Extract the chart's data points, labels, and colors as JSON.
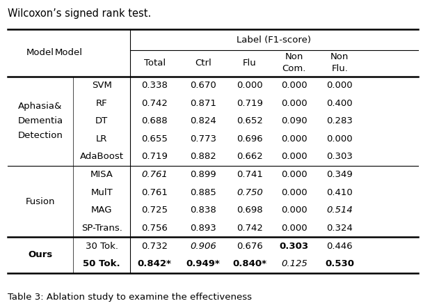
{
  "title": "Wilcoxon’s signed rank test.",
  "caption": "Table 3: Ablation study to examine the effectiveness",
  "header_top": "Label (F1-score)",
  "col_headers_line1": [
    "Total",
    "Ctrl",
    "Flu",
    "Non",
    "Non"
  ],
  "col_headers_line2": [
    "",
    "",
    "",
    "Com.",
    "Flu."
  ],
  "model_col_header": "Model",
  "groups": [
    {
      "group_label": [
        "Aphasia&",
        "Dementia",
        "Detection"
      ],
      "rows": [
        {
          "model": "SVM",
          "values": [
            "0.338",
            "0.670",
            "0.000",
            "0.000",
            "0.000"
          ],
          "styles": [
            "n",
            "n",
            "n",
            "n",
            "n"
          ]
        },
        {
          "model": "RF",
          "values": [
            "0.742",
            "0.871",
            "0.719",
            "0.000",
            "0.400"
          ],
          "styles": [
            "n",
            "n",
            "n",
            "n",
            "n"
          ]
        },
        {
          "model": "DT",
          "values": [
            "0.688",
            "0.824",
            "0.652",
            "0.090",
            "0.283"
          ],
          "styles": [
            "n",
            "n",
            "n",
            "n",
            "n"
          ]
        },
        {
          "model": "LR",
          "values": [
            "0.655",
            "0.773",
            "0.696",
            "0.000",
            "0.000"
          ],
          "styles": [
            "n",
            "n",
            "n",
            "n",
            "n"
          ]
        },
        {
          "model": "AdaBoost",
          "values": [
            "0.719",
            "0.882",
            "0.662",
            "0.000",
            "0.303"
          ],
          "styles": [
            "n",
            "n",
            "n",
            "n",
            "n"
          ]
        }
      ]
    },
    {
      "group_label": [
        "Fusion"
      ],
      "rows": [
        {
          "model": "MISA",
          "values": [
            "0.761",
            "0.899",
            "0.741",
            "0.000",
            "0.349"
          ],
          "styles": [
            "i",
            "n",
            "n",
            "n",
            "n"
          ]
        },
        {
          "model": "MulT",
          "values": [
            "0.761",
            "0.885",
            "0.750",
            "0.000",
            "0.410"
          ],
          "styles": [
            "n",
            "n",
            "i",
            "n",
            "n"
          ]
        },
        {
          "model": "MAG",
          "values": [
            "0.725",
            "0.838",
            "0.698",
            "0.000",
            "0.514"
          ],
          "styles": [
            "n",
            "n",
            "n",
            "n",
            "i"
          ]
        },
        {
          "model": "SP-Trans.",
          "values": [
            "0.756",
            "0.893",
            "0.742",
            "0.000",
            "0.324"
          ],
          "styles": [
            "n",
            "n",
            "n",
            "n",
            "n"
          ]
        }
      ]
    }
  ],
  "ours_label": "Ours",
  "ours_rows": [
    {
      "model": "30 Tok.",
      "model_style": "n",
      "values": [
        "0.732",
        "0.906",
        "0.676",
        "0.303",
        "0.446"
      ],
      "styles": [
        "n",
        "i",
        "n",
        "b",
        "n"
      ]
    },
    {
      "model": "50 Tok.",
      "model_style": "b",
      "values": [
        "0.842*",
        "0.949*",
        "0.840*",
        "0.125",
        "0.530"
      ],
      "styles": [
        "b",
        "b",
        "b",
        "i",
        "b"
      ]
    }
  ],
  "figsize": [
    6.08,
    4.42
  ],
  "dpi": 100
}
